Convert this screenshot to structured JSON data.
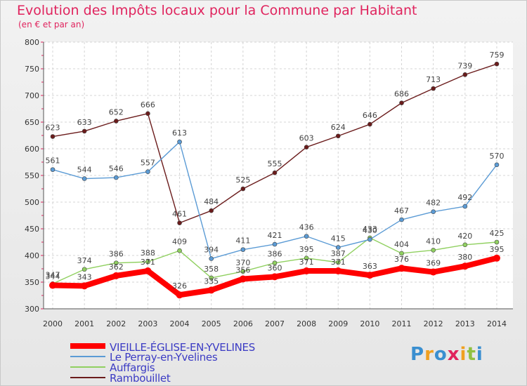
{
  "chart_data": {
    "type": "line",
    "title": "Evolution des Impôts locaux pour la Commune par Habitant",
    "subtitle": "(en € et par an)",
    "x": [
      "2000",
      "2001",
      "2002",
      "2003",
      "2004",
      "2005",
      "2006",
      "2007",
      "2008",
      "2009",
      "2010",
      "2011",
      "2012",
      "2013",
      "2014"
    ],
    "ylim": [
      300,
      800
    ],
    "yticks": [
      "300",
      "350",
      "400",
      "450",
      "500",
      "550",
      "600",
      "650",
      "700",
      "750",
      "800"
    ],
    "grid": true,
    "legend": "bottom-left",
    "series": [
      {
        "name": "VIEILLE-ÉGLISE-EN-YVELINES",
        "color": "#ff0000",
        "values": [
          344,
          343,
          362,
          371,
          326,
          335,
          356,
          360,
          371,
          371,
          363,
          376,
          369,
          380,
          395
        ]
      },
      {
        "name": "Le Perray-en-Yvelines",
        "color": "#5b9bd5",
        "values": [
          561,
          544,
          546,
          557,
          613,
          394,
          411,
          421,
          436,
          415,
          430,
          467,
          482,
          492,
          570
        ]
      },
      {
        "name": "Auffargis",
        "color": "#90d060",
        "values": [
          347,
          374,
          386,
          388,
          409,
          358,
          370,
          386,
          395,
          387,
          433,
          404,
          410,
          420,
          425
        ]
      },
      {
        "name": "Rambouillet",
        "color": "#6b1c1c",
        "values": [
          623,
          633,
          652,
          666,
          461,
          484,
          525,
          555,
          603,
          624,
          646,
          686,
          713,
          739,
          759
        ]
      }
    ]
  },
  "logo_text": "Proxiti"
}
